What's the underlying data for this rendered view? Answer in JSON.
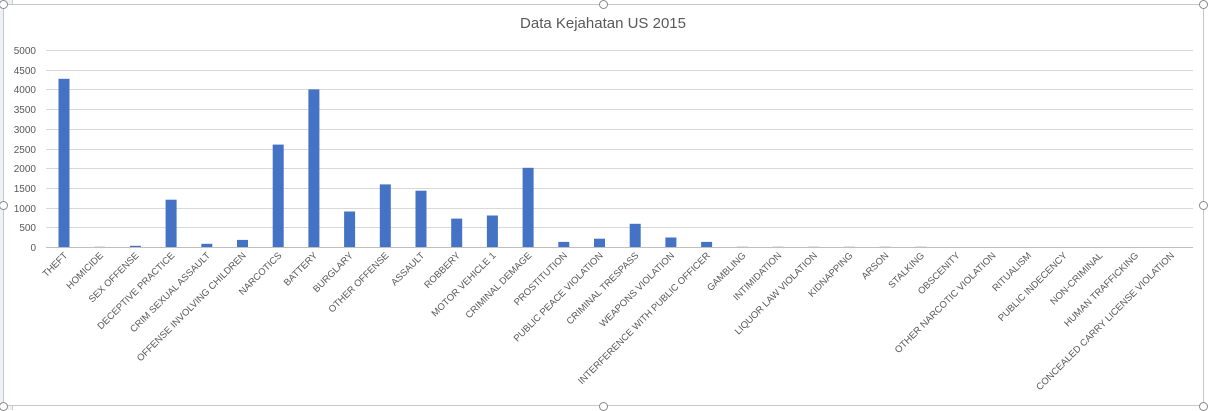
{
  "chart_data": {
    "type": "bar",
    "title": "Data Kejahatan US 2015",
    "xlabel": "",
    "ylabel": "",
    "ylim": [
      0,
      5000
    ],
    "yticks": [
      0,
      500,
      1000,
      1500,
      2000,
      2500,
      3000,
      3500,
      4000,
      4500,
      5000
    ],
    "grid": true,
    "legend": "none",
    "bar_color": "#4472c4",
    "categories": [
      "THEFT",
      "HOMICIDE",
      "SEX OFFENSE",
      "DECEPTIVE PRACTICE",
      "CRIM SEXUAL ASSAULT",
      "OFFENSE INVOLVING CHILDREN",
      "NARCOTICS",
      "BATTERY",
      "BURGLARY",
      "OTHER OFFENSE",
      "ASSAULT",
      "ROBBERY",
      "MOTOR VEHICLE 1",
      "CRIMINAL DEMAGE",
      "PROSTITUTION",
      "PUBLIC PEACE VIOLATION",
      "CRIMINAL TRESPASS",
      "WEAPONS VIOLATION",
      "INTERFERENCE WITH PUBLIC OFFICER",
      "GAMBLING",
      "INTIMIDATION",
      "LIQUOR LAW VIOLATION",
      "KIDNAPPING",
      "ARSON",
      "STALKING",
      "OBSCENITY",
      "OTHER NARCOTIC VIOLATION",
      "RITUALISM",
      "PUBLIC INDECENCY",
      "NON-CRIMINAL",
      "HUMAN TRAFFICKING",
      "CONCEALED CARRY LICENSE VIOLATION"
    ],
    "values": [
      4270,
      5,
      30,
      1200,
      80,
      180,
      2600,
      4000,
      900,
      1590,
      1430,
      720,
      800,
      2010,
      130,
      210,
      590,
      240,
      130,
      5,
      5,
      5,
      5,
      5,
      5,
      0,
      0,
      0,
      0,
      0,
      0,
      0
    ]
  }
}
